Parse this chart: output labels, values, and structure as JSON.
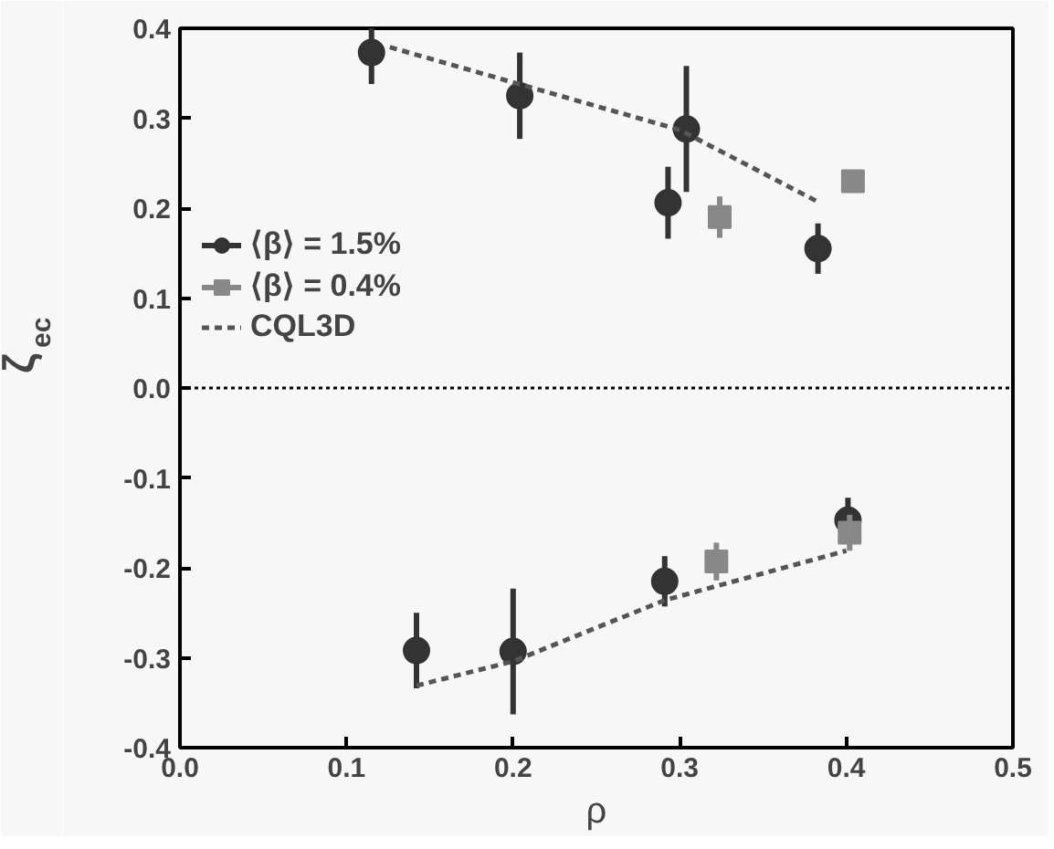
{
  "chart_data": {
    "type": "scatter",
    "xlabel": "ρ",
    "ylabel": "ζ$_{ec}$",
    "xlim": [
      0,
      0.5
    ],
    "ylim": [
      -0.4,
      0.4
    ],
    "xticks": [
      {
        "value": 0,
        "label": "0.0"
      },
      {
        "value": 0.1,
        "label": "0.1"
      },
      {
        "value": 0.2,
        "label": "0.2"
      },
      {
        "value": 0.3,
        "label": "0.3"
      },
      {
        "value": 0.4,
        "label": "0.4"
      },
      {
        "value": 0.5,
        "label": "0.5"
      }
    ],
    "yticks": [
      {
        "value": -0.4,
        "label": "-0.4"
      },
      {
        "value": -0.3,
        "label": "-0.3"
      },
      {
        "value": -0.2,
        "label": "-0.2"
      },
      {
        "value": -0.1,
        "label": "-0.1"
      },
      {
        "value": 0,
        "label": "0.0"
      },
      {
        "value": 0.1,
        "label": "0.1"
      },
      {
        "value": 0.2,
        "label": "0.2"
      },
      {
        "value": 0.3,
        "label": "0.3"
      },
      {
        "value": 0.4,
        "label": "0.4"
      }
    ],
    "grid": false,
    "legend": "top left",
    "series": [
      {
        "name": "⟨β⟩ = 1.5%",
        "color": "#333333",
        "marker": "circle",
        "x": [
          0.115,
          0.204,
          0.304,
          0.293,
          0.383,
          0.142,
          0.2,
          0.291,
          0.401
        ],
        "values": [
          0.373,
          0.325,
          0.288,
          0.206,
          0.155,
          -0.292,
          -0.293,
          -0.215,
          -0.147
        ],
        "errors": [
          0.035,
          0.048,
          0.07,
          0.04,
          0.028,
          0.042,
          0.07,
          0.028,
          0.025
        ]
      },
      {
        "name": "⟨β⟩ = 0.4%",
        "color": "#888888",
        "marker": "square",
        "x": [
          0.404,
          0.324,
          0.322,
          0.402
        ],
        "values": [
          0.23,
          0.19,
          -0.193,
          -0.161
        ],
        "errors": [
          null,
          0.023,
          0.021,
          0.02
        ]
      },
      {
        "name": "CQL3D",
        "type": "line",
        "line_style": "dashed",
        "color": "#555555",
        "x": [
          0.126,
          0.3,
          0.383,
          null,
          0.142,
          0.2,
          0.291,
          0.4
        ],
        "values": [
          0.379,
          0.287,
          0.207,
          null,
          -0.331,
          -0.304,
          -0.236,
          -0.181
        ]
      }
    ],
    "ref_lines": [
      {
        "axis": "y",
        "value": 0,
        "line_style": "dotted",
        "color": "#000000"
      }
    ]
  }
}
